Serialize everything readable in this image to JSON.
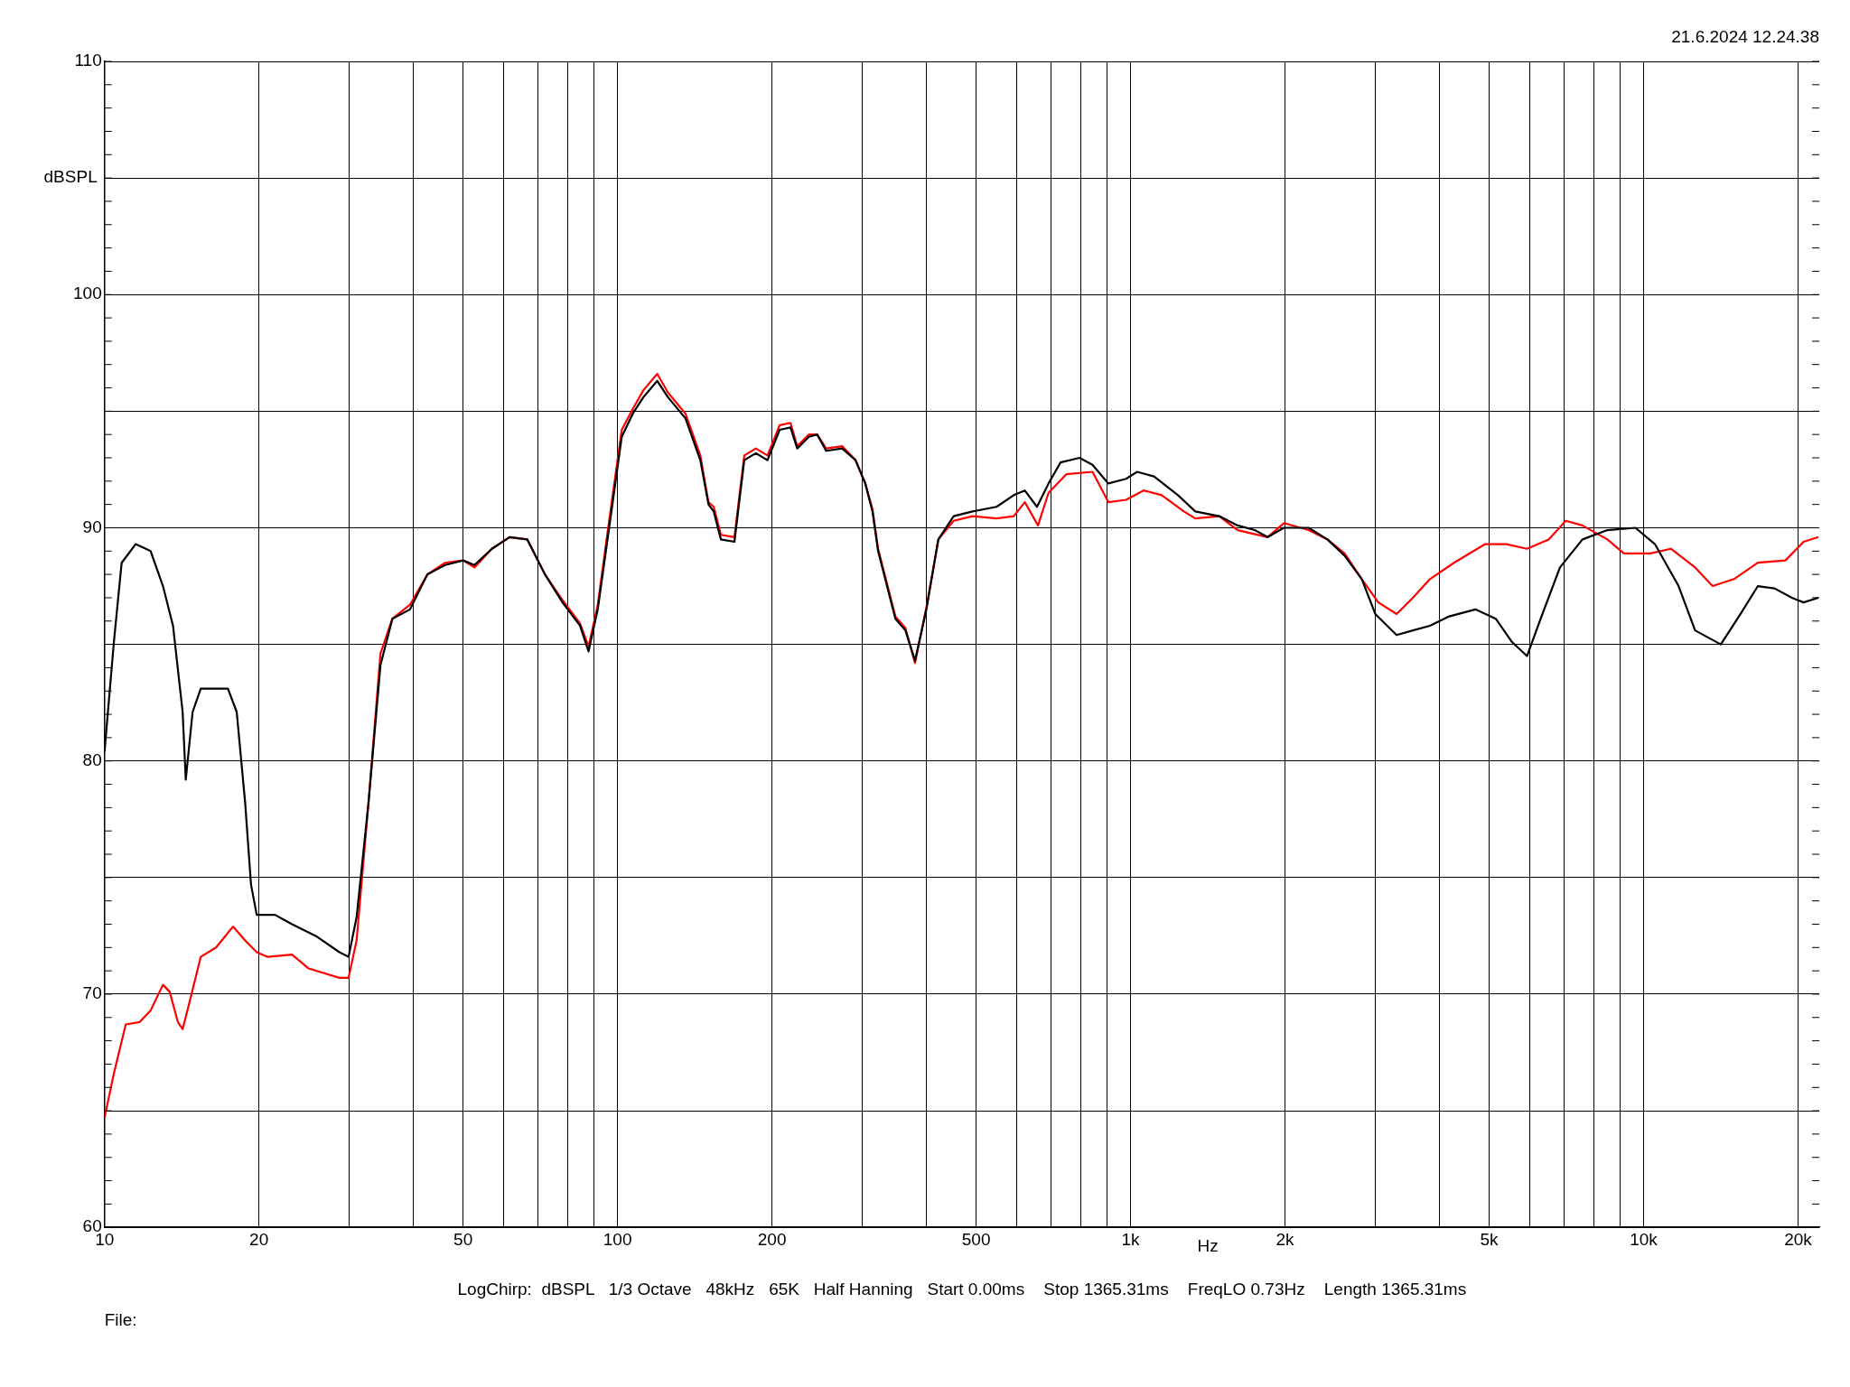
{
  "chart_data": {
    "type": "line",
    "log": "x",
    "xlabel": "Hz",
    "ylabel": "dBSPL",
    "grid": true,
    "legend": false,
    "xlim": [
      10,
      22000
    ],
    "ylim": [
      60,
      110
    ],
    "xticks": [
      10,
      {
        "value": 20,
        "label": "20"
      },
      {
        "value": 30,
        "label": null
      },
      {
        "value": 40,
        "label": null
      },
      50,
      {
        "value": 60,
        "label": null
      },
      {
        "value": 70,
        "label": null
      },
      {
        "value": 80,
        "label": null
      },
      {
        "value": 90,
        "label": null
      },
      100,
      200,
      {
        "value": 300,
        "label": null
      },
      {
        "value": 400,
        "label": null
      },
      500,
      {
        "value": 600,
        "label": null
      },
      {
        "value": 700,
        "label": null
      },
      {
        "value": 800,
        "label": null
      },
      {
        "value": 900,
        "label": null
      },
      {
        "value": 1000,
        "label": "1k"
      },
      {
        "value": 2000,
        "label": "2k"
      },
      {
        "value": 3000,
        "label": null
      },
      {
        "value": 4000,
        "label": null
      },
      {
        "value": 5000,
        "label": "5k"
      },
      {
        "value": 6000,
        "label": null
      },
      {
        "value": 7000,
        "label": null
      },
      {
        "value": 8000,
        "label": null
      },
      {
        "value": 9000,
        "label": null
      },
      {
        "value": 10000,
        "label": "10k"
      },
      {
        "value": 20000,
        "label": "20k"
      }
    ],
    "yticks": [
      60,
      {
        "value": 65,
        "label": null
      },
      70,
      {
        "value": 75,
        "label": null
      },
      80,
      {
        "value": 85,
        "label": null
      },
      90,
      {
        "value": 95,
        "label": null
      },
      100,
      {
        "value": 105,
        "label": null
      },
      110
    ],
    "annotations": [
      "21.6.2024 12.24.38",
      "LogChirp:  dBSPL   1/3 Octave   48kHz   65K   Half Hanning   Start 0.00ms    Stop 1365.31ms    FreqLO 0.73Hz    Length 1365.31ms",
      "File:"
    ],
    "series": [
      {
        "color": "#000000",
        "x": [
          10,
          10.43,
          10.8,
          11.5,
          12.3,
          13.0,
          13.6,
          14.2,
          14.4,
          14.85,
          15.4,
          17.4,
          18.1,
          18.8,
          19.3,
          19.8,
          21.5,
          23.2,
          25.8,
          28.7,
          29.9,
          31,
          32.7,
          34.5,
          36.4,
          39.4,
          42.6,
          46.1,
          50,
          52.6,
          56.9,
          61.6,
          66.7,
          72.2,
          78.1,
          84.5,
          87.8,
          91.5,
          96.3,
          101.9,
          107.1,
          112.3,
          119.5,
          125.4,
          135.6,
          145,
          150.4,
          154,
          159,
          169,
          176.6,
          186,
          196,
          207,
          217.3,
          224,
          236,
          245,
          255,
          274,
          291,
          304,
          314,
          322,
          348,
          364,
          380,
          400,
          422,
          452,
          492,
          548,
          592,
          622,
          657,
          692,
          730,
          795,
          843,
          905,
          980,
          1030,
          1111,
          1237,
          1337,
          1488,
          1617,
          1745,
          1850,
          1990,
          2223,
          2420,
          2613,
          2823,
          3000,
          3300,
          3550,
          3832,
          4180,
          4700,
          5150,
          5540,
          5925,
          6300,
          6870,
          7600,
          8500,
          9640,
          10520,
          11700,
          12600,
          14140,
          15440,
          16700,
          18000,
          19460,
          20500,
          21900
        ],
        "values": [
          80.4,
          85.1,
          88.5,
          89.3,
          89.0,
          87.5,
          85.8,
          82.1,
          79.2,
          82.1,
          83.1,
          83.1,
          82.1,
          78.2,
          74.7,
          73.4,
          73.4,
          73.0,
          72.5,
          71.8,
          71.6,
          73.3,
          78.2,
          84.1,
          86.1,
          86.5,
          88.0,
          88.4,
          88.6,
          88.4,
          89.1,
          89.6,
          89.5,
          88.0,
          86.8,
          85.8,
          84.7,
          86.5,
          90.0,
          93.9,
          94.9,
          95.6,
          96.3,
          95.6,
          94.7,
          92.9,
          91.0,
          90.7,
          89.5,
          89.4,
          92.9,
          93.2,
          92.9,
          94.2,
          94.3,
          93.4,
          93.9,
          94.0,
          93.3,
          93.4,
          92.9,
          91.9,
          90.7,
          89.0,
          86.1,
          85.6,
          84.3,
          86.5,
          89.5,
          90.5,
          90.7,
          90.9,
          91.4,
          91.6,
          90.9,
          91.9,
          92.8,
          93.0,
          92.7,
          91.9,
          92.1,
          92.4,
          92.2,
          91.4,
          90.7,
          90.5,
          90.1,
          89.9,
          89.6,
          90.0,
          90.0,
          89.5,
          88.8,
          87.8,
          86.3,
          85.4,
          85.6,
          85.8,
          86.2,
          86.5,
          86.1,
          85.1,
          84.5,
          86.1,
          88.3,
          89.5,
          89.9,
          90.0,
          89.3,
          87.5,
          85.6,
          85.0,
          86.3,
          87.5,
          87.4,
          87.0,
          86.8,
          87.0
        ]
      },
      {
        "color": "#ff0000",
        "x": [
          10,
          10.43,
          11,
          11.7,
          12.3,
          13.0,
          13.4,
          13.9,
          14.2,
          14.7,
          15.4,
          16.5,
          17.8,
          18.8,
          19.8,
          20.8,
          23.2,
          25,
          28.7,
          29.9,
          31,
          32.7,
          34.5,
          36.4,
          39.4,
          42.6,
          46.1,
          50,
          52.6,
          56.9,
          61.6,
          66.7,
          72.2,
          78.1,
          84.5,
          87.8,
          91.5,
          96.3,
          101.9,
          107.1,
          112.3,
          119.5,
          125.4,
          135.6,
          145,
          150.4,
          154,
          159,
          169,
          176.6,
          186,
          196,
          207,
          217.3,
          224,
          236,
          245,
          255,
          274,
          291,
          304,
          314,
          322,
          348,
          364,
          380,
          400,
          422,
          452,
          492,
          548,
          592,
          622,
          660,
          692,
          750,
          843,
          905,
          980,
          1060,
          1150,
          1270,
          1337,
          1488,
          1617,
          1850,
          1990,
          2223,
          2420,
          2613,
          2823,
          3040,
          3300,
          3550,
          3832,
          4270,
          4910,
          5400,
          5925,
          6530,
          7050,
          7600,
          8500,
          9150,
          10300,
          11300,
          12600,
          13630,
          15000,
          16700,
          18900,
          20500,
          21900
        ],
        "values": [
          64.7,
          66.6,
          68.7,
          68.8,
          69.3,
          70.4,
          70.1,
          68.8,
          68.5,
          69.8,
          71.6,
          72.0,
          72.9,
          72.3,
          71.8,
          71.6,
          71.7,
          71.1,
          70.7,
          70.7,
          72.3,
          78.2,
          84.6,
          86.1,
          86.7,
          88.0,
          88.5,
          88.6,
          88.3,
          89.1,
          89.6,
          89.5,
          88.0,
          86.9,
          85.9,
          84.9,
          86.7,
          90.3,
          94.2,
          95.1,
          95.9,
          96.6,
          95.8,
          94.9,
          93.1,
          91.1,
          90.9,
          89.7,
          89.6,
          93.1,
          93.4,
          93.1,
          94.4,
          94.5,
          93.5,
          94.0,
          94.0,
          93.4,
          93.5,
          92.9,
          91.9,
          90.8,
          89.1,
          86.2,
          85.7,
          84.2,
          86.6,
          89.5,
          90.3,
          90.5,
          90.4,
          90.5,
          91.1,
          90.1,
          91.5,
          92.3,
          92.4,
          91.1,
          91.2,
          91.6,
          91.4,
          90.7,
          90.4,
          90.5,
          89.9,
          89.6,
          90.2,
          89.9,
          89.5,
          88.9,
          87.8,
          86.8,
          86.3,
          87.0,
          87.8,
          88.5,
          89.3,
          89.3,
          89.1,
          89.5,
          90.3,
          90.1,
          89.5,
          88.9,
          88.9,
          89.1,
          88.3,
          87.5,
          87.8,
          88.5,
          88.6,
          89.4,
          89.6
        ]
      }
    ]
  }
}
